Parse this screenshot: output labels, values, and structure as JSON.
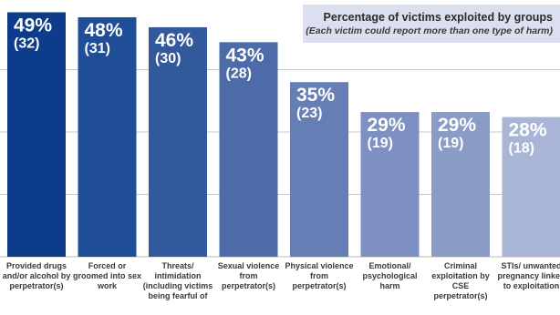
{
  "legend": {
    "title": "Percentage of victims exploited by groups",
    "subtitle": "(Each victim could report more than one type of harm)"
  },
  "chart_data": {
    "type": "bar",
    "title": "Percentage of victims exploited by groups",
    "subtitle": "(Each victim could report more than one type of harm)",
    "categories": [
      "Provided drugs and/or alcohol by perpetrator(s)",
      "Forced or groomed into sex work",
      "Threats/ intimidation (including victims being fearful of",
      "Sexual violence from perpetrator(s)",
      "Physical violence from perpetrator(s)",
      "Emotional/ psychological harm",
      "Criminal exploitation by CSE perpetrator(s)",
      "STIs/ unwanted pregnancy linked to exploitation"
    ],
    "values": [
      49,
      48,
      46,
      43,
      35,
      29,
      29,
      28
    ],
    "value_labels": [
      "49%",
      "48%",
      "46%",
      "43%",
      "35%",
      "29%",
      "29%",
      "28%"
    ],
    "counts": [
      "(32)",
      "(31)",
      "(30)",
      "(28)",
      "(23)",
      "(19)",
      "(19)",
      "(18)"
    ],
    "ylim": [
      0,
      50
    ],
    "grid": true,
    "colors": [
      "#0c3c8a",
      "#1f4d96",
      "#33599d",
      "#4d6aa9",
      "#667eb6",
      "#7e90c1",
      "#8a9bc6",
      "#a9b5d6"
    ],
    "gridline_color": "#c8c8c8"
  }
}
